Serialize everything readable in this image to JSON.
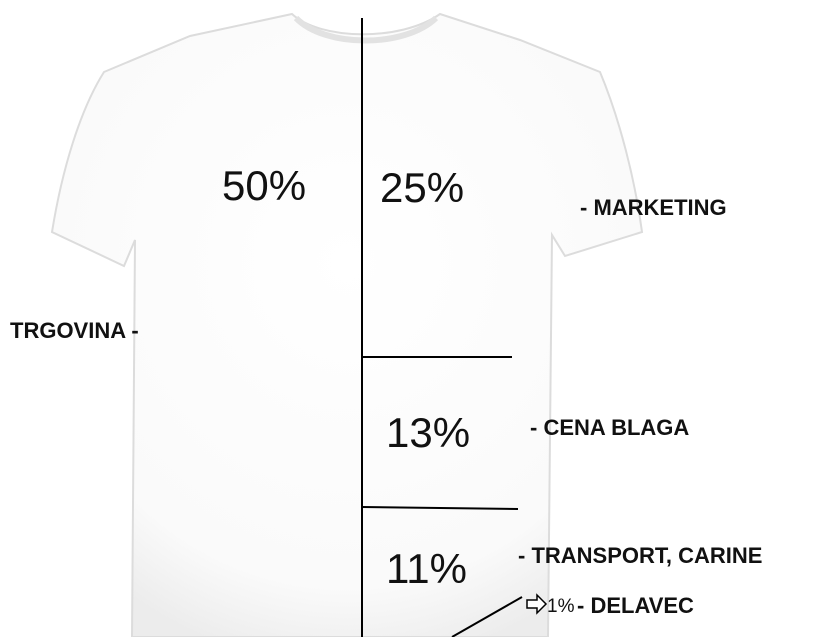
{
  "segments": [
    {
      "percent": "50%",
      "label": "TRGOVINA -"
    },
    {
      "percent": "25%",
      "label": "- MARKETING"
    },
    {
      "percent": "13%",
      "label": "- CENA BLAGA"
    },
    {
      "percent": "11%",
      "label": "- TRANSPORT, CARINE"
    },
    {
      "percent": "1%",
      "label": "- DELAVEC"
    }
  ]
}
